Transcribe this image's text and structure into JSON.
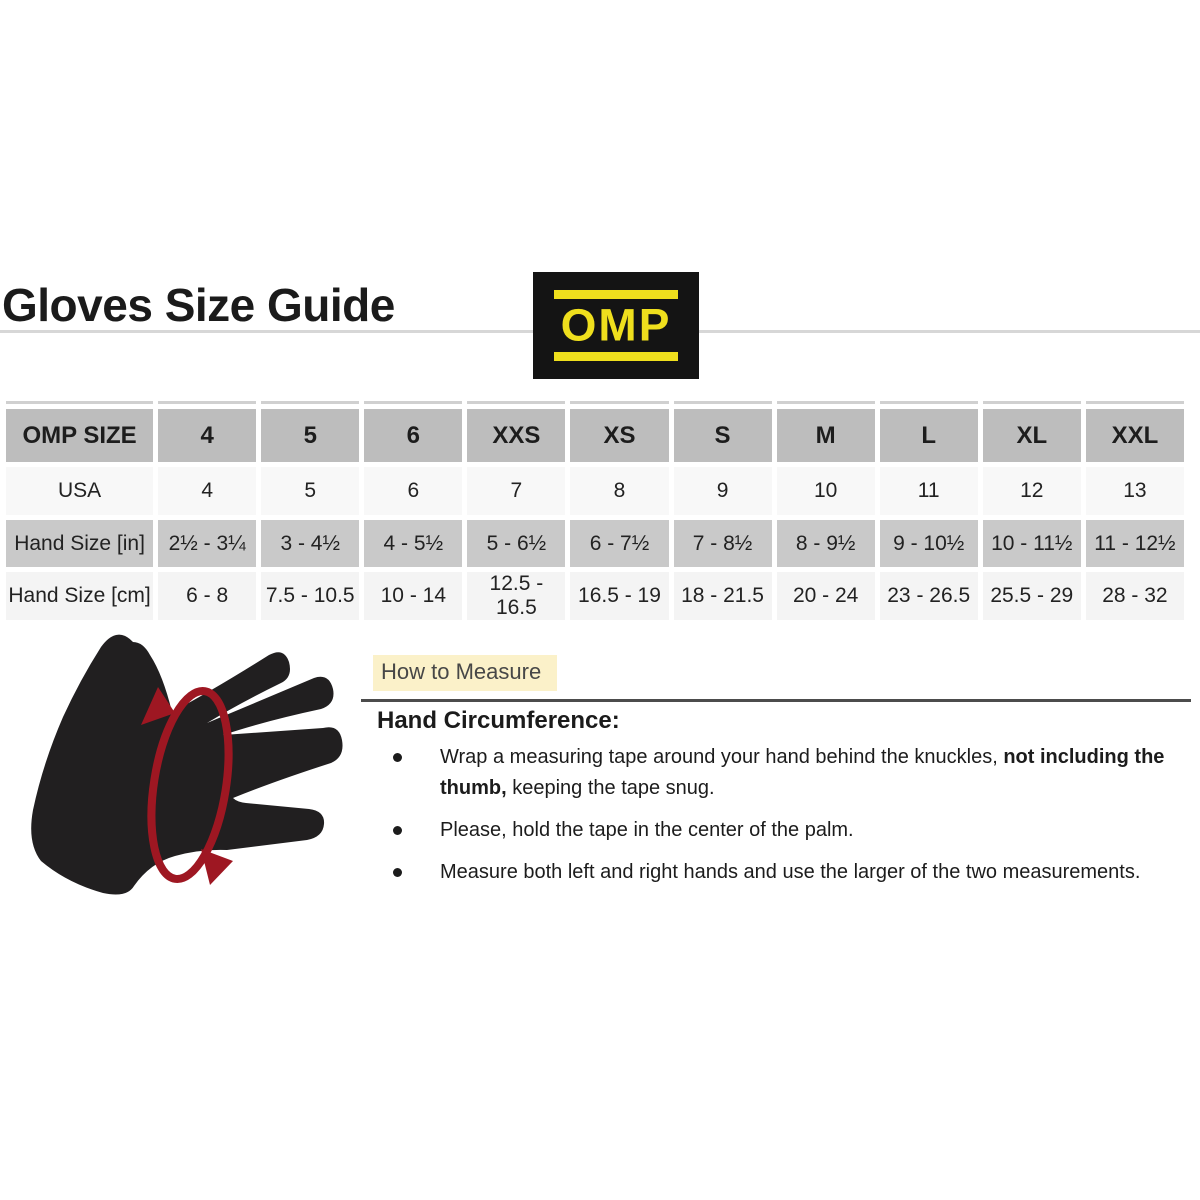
{
  "page": {
    "title": "Gloves Size Guide"
  },
  "logo": {
    "text": "OMP",
    "bg_color": "#141414",
    "yellow": "#efdf1d"
  },
  "size_table": {
    "columns": [
      "OMP SIZE",
      "4",
      "5",
      "6",
      "XXS",
      "XS",
      "S",
      "M",
      "L",
      "XL",
      "XXL"
    ],
    "rows": [
      {
        "label": "USA",
        "values": [
          "4",
          "5",
          "6",
          "7",
          "8",
          "9",
          "10",
          "11",
          "12",
          "13"
        ]
      },
      {
        "label": "Hand Size [in]",
        "values": [
          "2½ - 3¼",
          "3 - 4½",
          "4 - 5½",
          "5 - 6½",
          "6 - 7½",
          "7 - 8½",
          "8 - 9½",
          "9 - 10½",
          "10 - 11½",
          "11 - 12½"
        ]
      },
      {
        "label": "Hand Size [cm]",
        "values": [
          "6 - 8",
          "7.5 - 10.5",
          "10 - 14",
          "12.5 - 16.5",
          "16.5 - 19",
          "18 - 21.5",
          "20 - 24",
          "23 - 26.5",
          "25.5 - 29",
          "28 - 32"
        ]
      }
    ]
  },
  "measure": {
    "heading": "How to Measure",
    "subheading": "Hand Circumference:",
    "bullets": [
      {
        "parts": [
          {
            "t": "Wrap a measuring tape around your hand behind the knuckles, ",
            "b": 0
          },
          {
            "t": "not including the thumb,",
            "b": 1
          },
          {
            "t": " keeping the tape snug.",
            "b": 0
          }
        ]
      },
      {
        "parts": [
          {
            "t": "Please, hold the tape in the center of the palm.",
            "b": 0
          }
        ]
      },
      {
        "parts": [
          {
            "t": "Measure both left and right hands and use the larger of the two measurements.",
            "b": 0
          }
        ]
      }
    ]
  },
  "illustration": {
    "name": "hand-circumference-measurement",
    "hand_color": "#211f20",
    "arrow_color": "#9e1722"
  },
  "colors": {
    "header_gray": "#bdbdbd",
    "row_gray": "#c9c9c9",
    "row_light": "#f8f8f8",
    "row_light2": "#f4f4f4",
    "highlight_yellow": "#fbf1c9",
    "divider_light": "#d7d7d7",
    "rule_dark": "#4c4c4c"
  }
}
